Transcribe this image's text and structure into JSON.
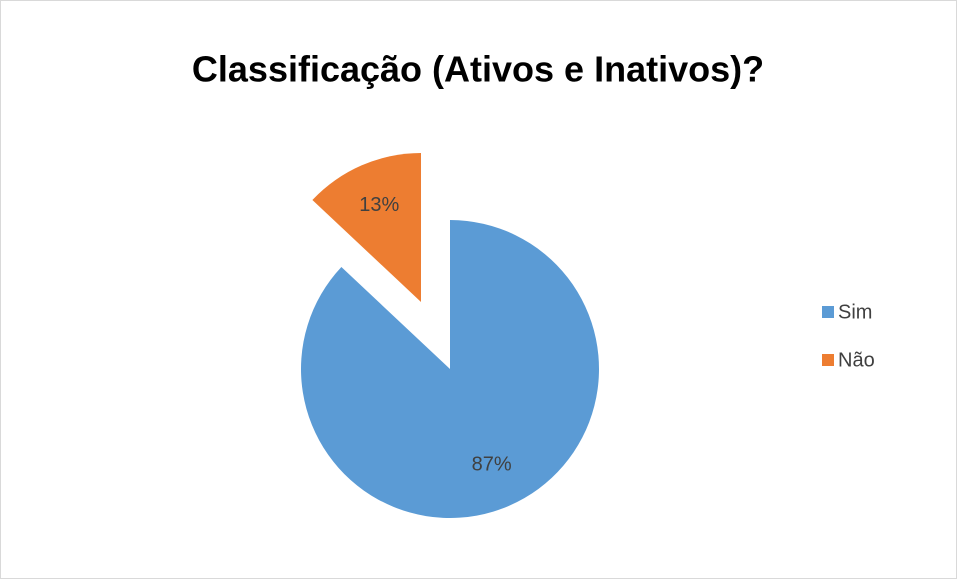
{
  "chart_data": {
    "type": "pie",
    "title": "Classificação (Ativos e Inativos)?",
    "categories": [
      "Sim",
      "Não"
    ],
    "values": [
      87,
      13
    ],
    "value_labels": [
      "87%",
      "13%"
    ],
    "colors": [
      "#5b9bd5",
      "#ed7d31"
    ],
    "legend": "right"
  }
}
